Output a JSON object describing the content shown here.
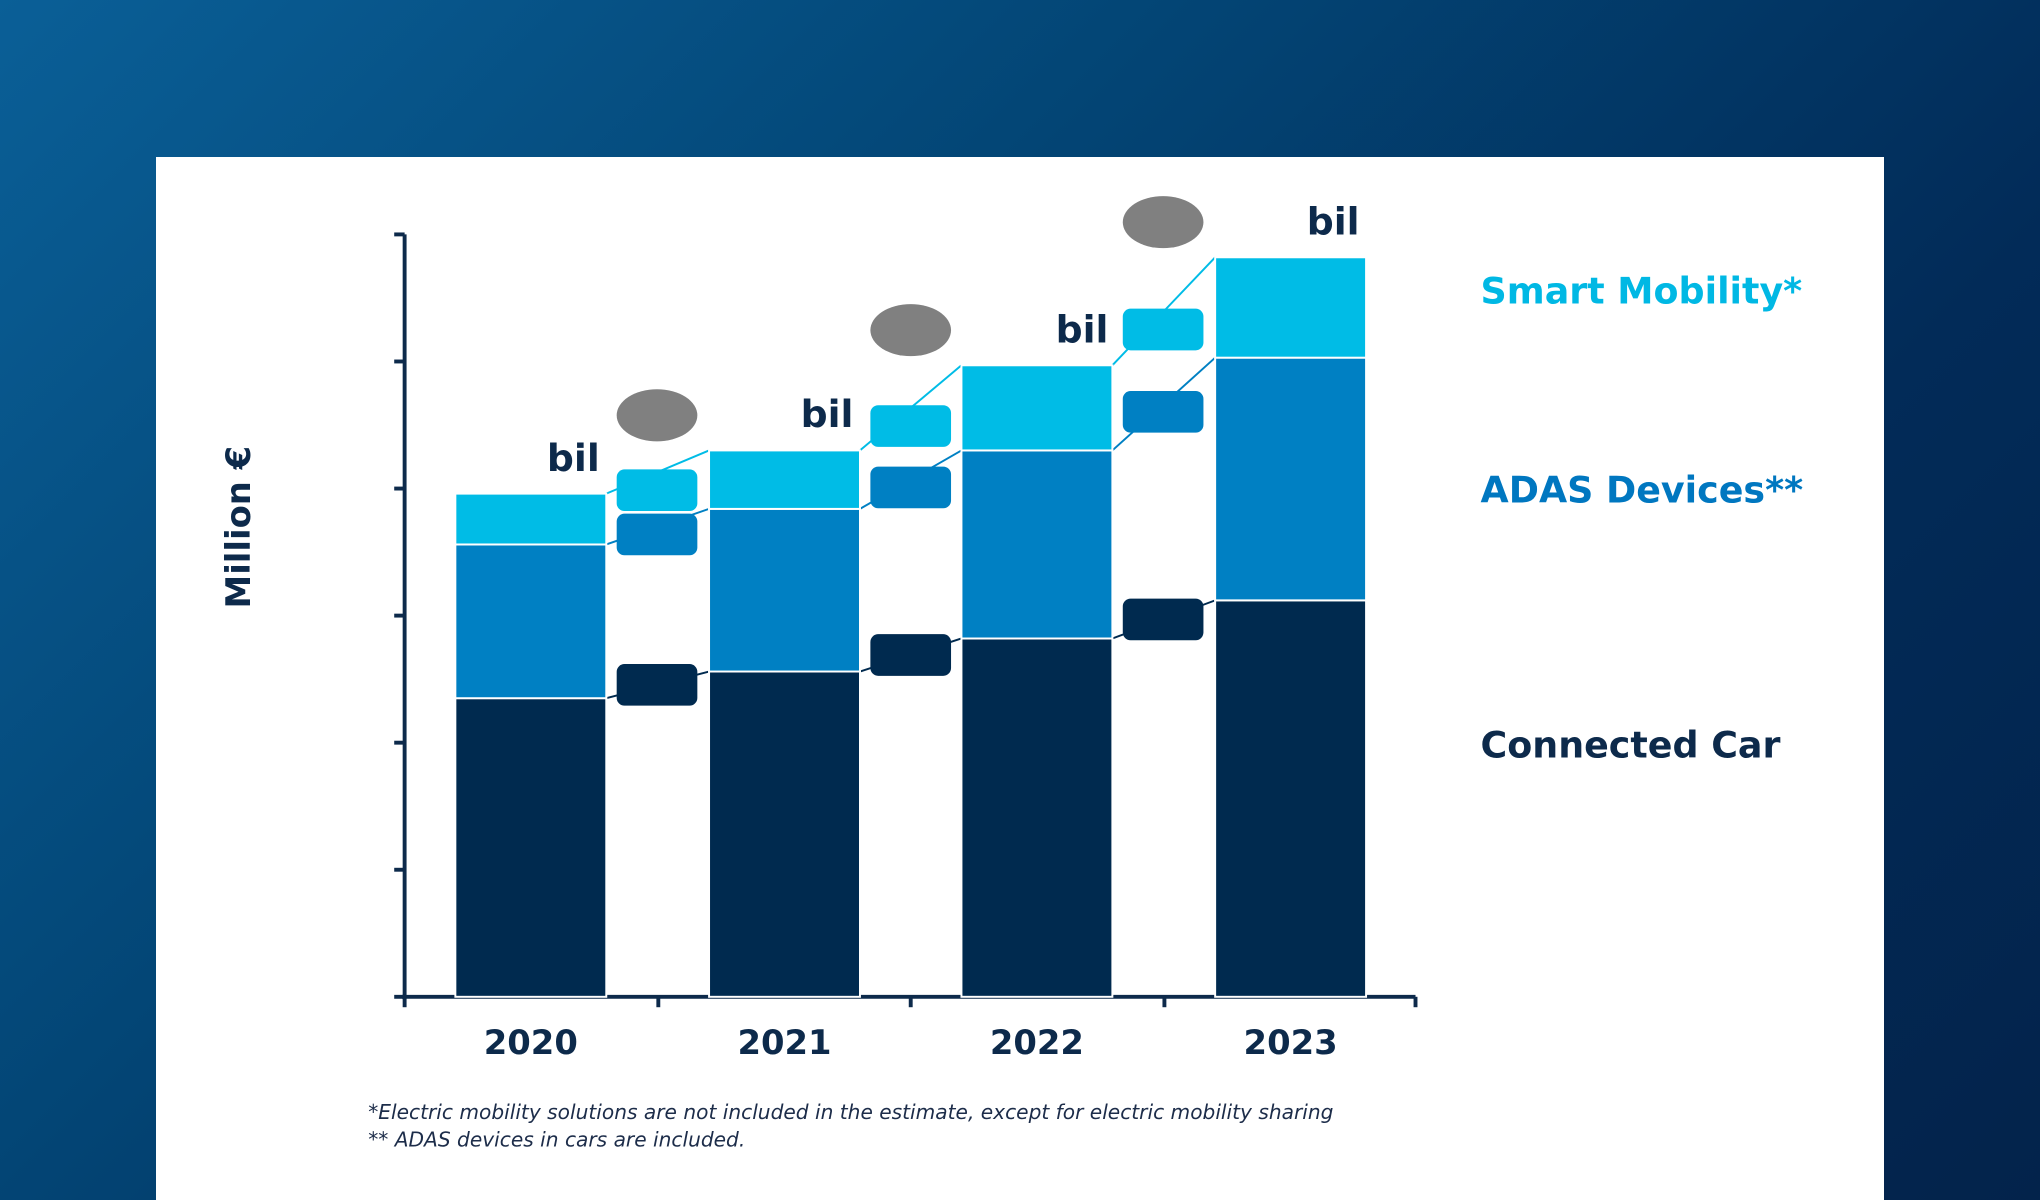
{
  "chart_data": {
    "type": "bar",
    "stacked": true,
    "categories": [
      "2020",
      "2021",
      "2022",
      "2023"
    ],
    "ylabel": "Million €",
    "ylim": [
      0,
      6
    ],
    "yticks_count": 7,
    "ytick_labels_shown": false,
    "grid": false,
    "legend_placement": "right",
    "series": [
      {
        "name": "Connected Car",
        "color": "#002a4f",
        "values": [
          2.35,
          2.56,
          2.82,
          3.12
        ]
      },
      {
        "name": "ADAS Devices**",
        "color": "#0080c3",
        "values": [
          1.21,
          1.28,
          1.48,
          1.91
        ]
      },
      {
        "name": "Smart Mobility*",
        "color": "#00bce6",
        "values": [
          0.4,
          0.46,
          0.67,
          0.79
        ]
      }
    ],
    "total_labels": [
      "bil",
      "bil",
      "bil",
      "bil"
    ],
    "growth_marker_color": "#808080",
    "footnotes": [
      "*Electric mobility solutions are not included in the estimate, except for electric mobility sharing",
      "** ADAS devices in cars are included."
    ]
  }
}
